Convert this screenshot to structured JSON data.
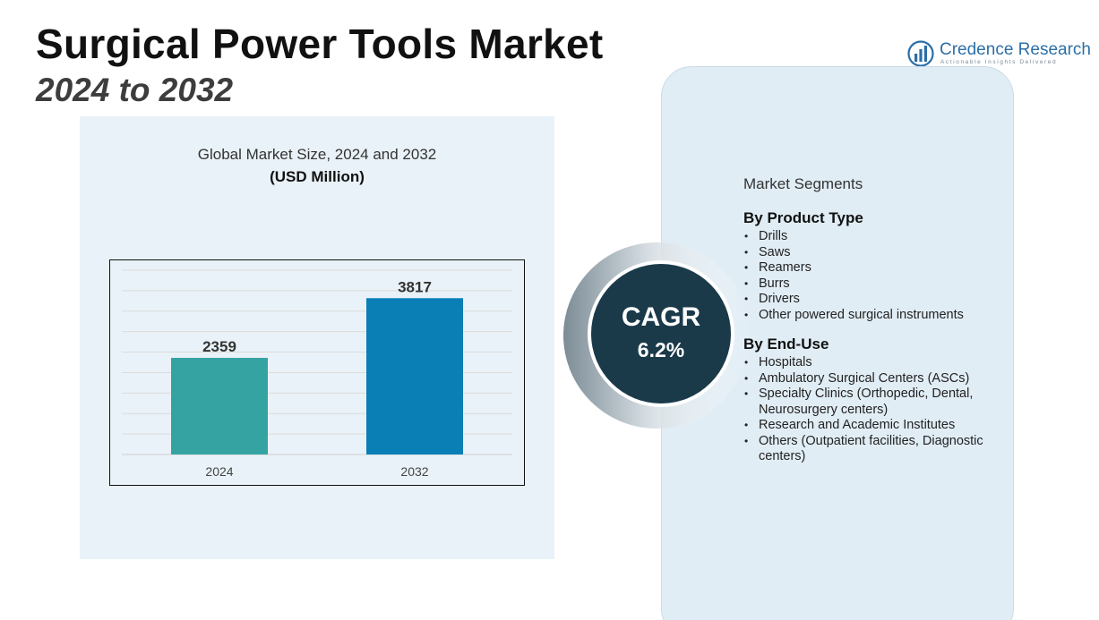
{
  "header": {
    "title": "Surgical Power Tools Market",
    "subtitle": "2024 to 2032"
  },
  "logo": {
    "name": "Credence Research",
    "tagline": "Actionable Insights Delivered",
    "icon": "bar-chart-logo-icon"
  },
  "colors": {
    "bar_2024": "#35a3a2",
    "bar_2032": "#0a7fb5",
    "cagr_circle": "#1a3a4a",
    "chart_panel_bg": "#e9f2f8",
    "segment_panel_bg": "#e1edf5"
  },
  "cagr": {
    "label": "CAGR",
    "value": "6.2%"
  },
  "segments": {
    "heading": "Market Segments",
    "groups": [
      {
        "title": "By Product Type",
        "items": [
          "Drills",
          "Saws",
          "Reamers",
          "Burrs",
          "Drivers",
          "Other powered surgical instruments"
        ]
      },
      {
        "title": "By End-Use",
        "items": [
          "Hospitals",
          "Ambulatory Surgical Centers (ASCs)",
          "Specialty Clinics (Orthopedic, Dental, Neurosurgery centers)",
          "Research and Academic Institutes",
          "Others (Outpatient facilities, Diagnostic centers)"
        ]
      }
    ]
  },
  "chart_data": {
    "type": "bar",
    "title": "Global Market Size, 2024 and 2032",
    "unit": "(USD Million)",
    "categories": [
      "2024",
      "2032"
    ],
    "values": [
      2359,
      3817
    ],
    "xlabel": "",
    "ylabel": "",
    "ylim": [
      0,
      4500
    ],
    "grid": true,
    "legend": "none"
  }
}
